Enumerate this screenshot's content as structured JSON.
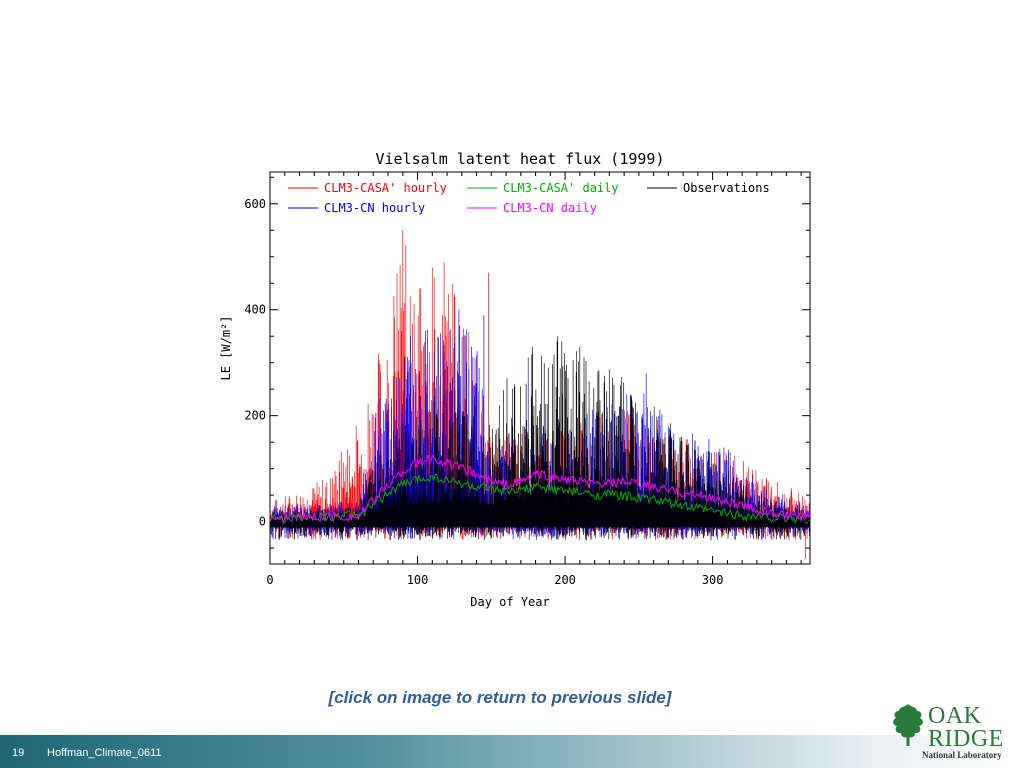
{
  "slide": {
    "caption": "[click on image to return to previous slide]",
    "number": "19",
    "footer_text": "Hoffman_Climate_0611"
  },
  "logo": {
    "word1": "OAK",
    "word2": "RIDGE",
    "subtitle": "National Laboratory",
    "icon": "oak-leaf-icon",
    "color": "#2a7a3c"
  },
  "chart_data": {
    "type": "line",
    "title": "Vielsalm latent heat flux (1999)",
    "xlabel": "Day of Year",
    "ylabel": "LE [W/m²]",
    "xlim": [
      0,
      366
    ],
    "ylim": [
      -80,
      660
    ],
    "xticks": [
      0,
      100,
      200,
      300
    ],
    "yticks": [
      0,
      200,
      400,
      600
    ],
    "legend_position": "top",
    "series": [
      {
        "name": "CLM3-CASA' hourly",
        "color": "#ff0000",
        "kind": "hourly",
        "envelope": [
          [
            0,
            40
          ],
          [
            20,
            60
          ],
          [
            40,
            90
          ],
          [
            50,
            150
          ],
          [
            60,
            200
          ],
          [
            70,
            300
          ],
          [
            80,
            400
          ],
          [
            90,
            550
          ],
          [
            100,
            450
          ],
          [
            110,
            480
          ],
          [
            120,
            490
          ],
          [
            130,
            430
          ],
          [
            140,
            320
          ],
          [
            150,
            150
          ],
          [
            160,
            170
          ],
          [
            200,
            180
          ],
          [
            240,
            220
          ],
          [
            280,
            170
          ],
          [
            320,
            120
          ],
          [
            340,
            80
          ],
          [
            366,
            50
          ]
        ],
        "peaks": [
          [
            90,
            550
          ],
          [
            95,
            425
          ],
          [
            110,
            480
          ],
          [
            118,
            490
          ],
          [
            125,
            430
          ],
          [
            148,
            470
          ],
          [
            363,
            -70
          ]
        ]
      },
      {
        "name": "CLM3-CN hourly",
        "color": "#0000ff",
        "kind": "hourly",
        "envelope": [
          [
            0,
            30
          ],
          [
            60,
            40
          ],
          [
            72,
            220
          ],
          [
            80,
            300
          ],
          [
            90,
            350
          ],
          [
            100,
            370
          ],
          [
            110,
            380
          ],
          [
            120,
            400
          ],
          [
            130,
            380
          ],
          [
            140,
            330
          ],
          [
            147,
            260
          ],
          [
            150,
            120
          ],
          [
            160,
            170
          ],
          [
            200,
            190
          ],
          [
            240,
            240
          ],
          [
            260,
            250
          ],
          [
            280,
            190
          ],
          [
            300,
            170
          ],
          [
            320,
            110
          ],
          [
            340,
            60
          ],
          [
            366,
            30
          ]
        ],
        "peaks": [
          [
            128,
            400
          ],
          [
            145,
            390
          ],
          [
            175,
            310
          ],
          [
            255,
            280
          ]
        ]
      },
      {
        "name": "Observations",
        "color": "#000000",
        "kind": "hourly",
        "envelope": [
          [
            0,
            20
          ],
          [
            60,
            30
          ],
          [
            75,
            150
          ],
          [
            100,
            210
          ],
          [
            120,
            260
          ],
          [
            150,
            200
          ],
          [
            160,
            270
          ],
          [
            180,
            330
          ],
          [
            200,
            350
          ],
          [
            210,
            320
          ],
          [
            230,
            300
          ],
          [
            250,
            250
          ],
          [
            270,
            190
          ],
          [
            290,
            150
          ],
          [
            320,
            80
          ],
          [
            340,
            40
          ],
          [
            366,
            20
          ]
        ],
        "peaks": [
          [
            178,
            330
          ],
          [
            195,
            350
          ],
          [
            210,
            330
          ]
        ]
      },
      {
        "name": "CLM3-CASA' daily",
        "color": "#00b000",
        "kind": "daily",
        "points": [
          [
            0,
            5
          ],
          [
            20,
            8
          ],
          [
            40,
            10
          ],
          [
            60,
            12
          ],
          [
            70,
            30
          ],
          [
            80,
            55
          ],
          [
            90,
            70
          ],
          [
            100,
            80
          ],
          [
            110,
            85
          ],
          [
            120,
            78
          ],
          [
            130,
            72
          ],
          [
            140,
            65
          ],
          [
            150,
            60
          ],
          [
            160,
            55
          ],
          [
            170,
            60
          ],
          [
            180,
            65
          ],
          [
            190,
            62
          ],
          [
            200,
            58
          ],
          [
            210,
            55
          ],
          [
            220,
            50
          ],
          [
            230,
            52
          ],
          [
            240,
            48
          ],
          [
            250,
            45
          ],
          [
            260,
            42
          ],
          [
            270,
            35
          ],
          [
            280,
            30
          ],
          [
            290,
            25
          ],
          [
            300,
            20
          ],
          [
            320,
            12
          ],
          [
            340,
            8
          ],
          [
            366,
            5
          ]
        ]
      },
      {
        "name": "CLM3-CN daily",
        "color": "#ff00ff",
        "kind": "daily",
        "points": [
          [
            0,
            5
          ],
          [
            20,
            8
          ],
          [
            40,
            10
          ],
          [
            60,
            10
          ],
          [
            70,
            40
          ],
          [
            80,
            70
          ],
          [
            90,
            95
          ],
          [
            100,
            110
          ],
          [
            110,
            120
          ],
          [
            120,
            110
          ],
          [
            130,
            100
          ],
          [
            140,
            90
          ],
          [
            150,
            75
          ],
          [
            160,
            70
          ],
          [
            170,
            75
          ],
          [
            180,
            90
          ],
          [
            190,
            85
          ],
          [
            200,
            80
          ],
          [
            210,
            75
          ],
          [
            220,
            70
          ],
          [
            230,
            72
          ],
          [
            240,
            75
          ],
          [
            250,
            70
          ],
          [
            260,
            65
          ],
          [
            270,
            60
          ],
          [
            280,
            55
          ],
          [
            290,
            50
          ],
          [
            300,
            45
          ],
          [
            320,
            30
          ],
          [
            340,
            15
          ],
          [
            366,
            5
          ]
        ]
      }
    ]
  }
}
